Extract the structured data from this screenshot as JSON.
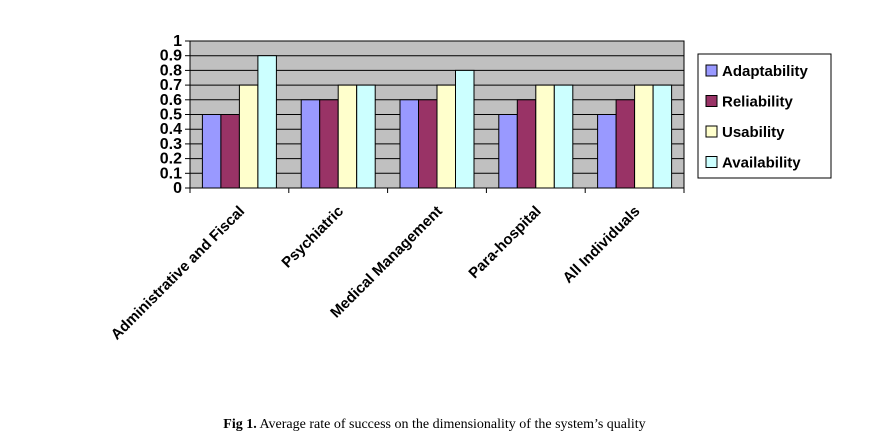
{
  "chart_data": {
    "type": "bar",
    "categories": [
      "Administrative and Fiscal",
      "Psychiatric",
      "Medical Management",
      "Para-hospital",
      "All Individuals"
    ],
    "series": [
      {
        "name": "Adaptability",
        "color": "#9999FF",
        "values": [
          0.5,
          0.6,
          0.6,
          0.5,
          0.5
        ]
      },
      {
        "name": "Reliability",
        "color": "#993366",
        "values": [
          0.5,
          0.6,
          0.6,
          0.6,
          0.6
        ]
      },
      {
        "name": "Usability",
        "color": "#FFFFCC",
        "values": [
          0.7,
          0.7,
          0.7,
          0.7,
          0.7
        ]
      },
      {
        "name": "Availability",
        "color": "#CCFFFF",
        "values": [
          0.9,
          0.7,
          0.8,
          0.7,
          0.7
        ]
      }
    ],
    "yticks": [
      "0",
      "0.1",
      "0.2",
      "0.3",
      "0.4",
      "0.5",
      "0.6",
      "0.7",
      "0.8",
      "0.9",
      "1"
    ],
    "ylim": [
      0,
      1
    ],
    "plot_background": "#C0C0C0",
    "grid": true,
    "legend": "right"
  },
  "caption": {
    "label": "Fig 1.",
    "text": " Average rate of success on the dimensionality of the system’s quality"
  }
}
